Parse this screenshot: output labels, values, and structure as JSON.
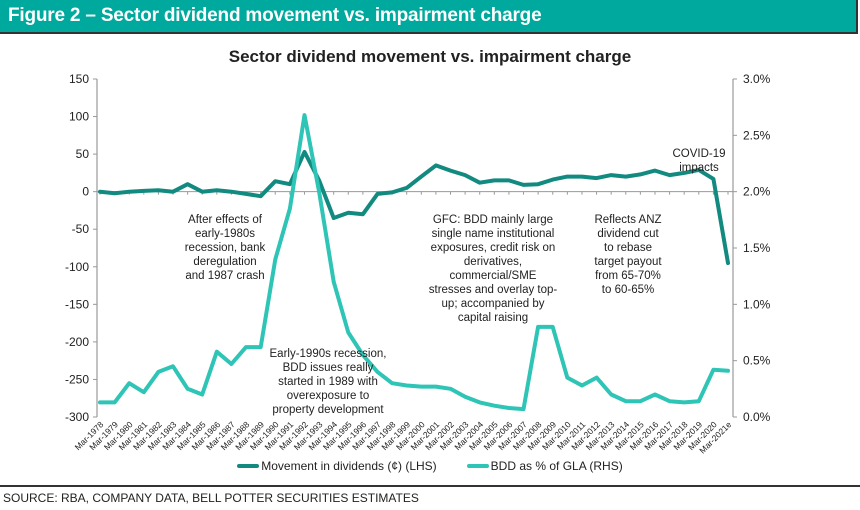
{
  "figure_header": "Figure 2 – Sector dividend movement vs. impairment charge",
  "source": "SOURCE: RBA, COMPANY DATA, BELL POTTER SECURITIES ESTIMATES",
  "colors": {
    "header_bg": "#00a99d",
    "dividends": "#138a80",
    "bdd": "#2ec4b6"
  },
  "chart_data": {
    "type": "line",
    "title": "Sector dividend movement vs. impairment charge",
    "xlabel": "",
    "ylabel_left": "",
    "ylabel_right": "",
    "categories": [
      "Mar-1978",
      "Mar-1979",
      "Mar-1980",
      "Mar-1981",
      "Mar-1982",
      "Mar-1983",
      "Mar-1984",
      "Mar-1985",
      "Mar-1986",
      "Mar-1987",
      "Mar-1988",
      "Mar-1989",
      "Mar-1990",
      "Mar-1991",
      "Mar-1992",
      "Mar-1993",
      "Mar-1994",
      "Mar-1995",
      "Mar-1996",
      "Mar-1997",
      "Mar-1998",
      "Mar-1999",
      "Mar-2000",
      "Mar-2001",
      "Mar-2002",
      "Mar-2003",
      "Mar-2004",
      "Mar-2005",
      "Mar-2006",
      "Mar-2007",
      "Mar-2008",
      "Mar-2009",
      "Mar-2010",
      "Mar-2011",
      "Mar-2012",
      "Mar-2013",
      "Mar-2014",
      "Mar-2015",
      "Mar-2016",
      "Mar-2017",
      "Mar-2018",
      "Mar-2019",
      "Mar-2020",
      "Mar-2021e"
    ],
    "left_axis": {
      "min": -300,
      "max": 150,
      "ticks": [
        150,
        100,
        50,
        0,
        -50,
        -100,
        -150,
        -200,
        -250,
        -300
      ]
    },
    "right_axis": {
      "min": 0,
      "max": 3.0,
      "ticks": [
        "3.0%",
        "2.5%",
        "2.0%",
        "1.5%",
        "1.0%",
        "0.5%",
        "0.0%"
      ]
    },
    "series": [
      {
        "name": "Movement in dividends (¢) (LHS)",
        "axis": "left",
        "values": [
          0,
          -2,
          0,
          1,
          2,
          0,
          10,
          0,
          2,
          0,
          -3,
          -6,
          14,
          10,
          53,
          15,
          -35,
          -28,
          -30,
          -3,
          -1,
          5,
          20,
          35,
          28,
          22,
          12,
          15,
          15,
          9,
          10,
          16,
          20,
          20,
          18,
          22,
          20,
          23,
          28,
          22,
          25,
          29,
          17,
          -95
        ]
      },
      {
        "name": "BDD as % of GLA (RHS)",
        "axis": "right",
        "values": [
          0.13,
          0.13,
          0.3,
          0.22,
          0.4,
          0.45,
          0.25,
          0.2,
          0.58,
          0.47,
          0.62,
          0.62,
          1.4,
          1.85,
          2.68,
          2.0,
          1.2,
          0.75,
          0.55,
          0.4,
          0.3,
          0.28,
          0.27,
          0.27,
          0.25,
          0.18,
          0.13,
          0.1,
          0.08,
          0.07,
          0.8,
          0.8,
          0.35,
          0.28,
          0.35,
          0.2,
          0.14,
          0.14,
          0.2,
          0.14,
          0.13,
          0.14,
          0.42,
          0.41
        ]
      }
    ],
    "legend": [
      "Movement in dividends (¢) (LHS)",
      "BDD as % of GLA (RHS)"
    ],
    "legend_position": "bottom",
    "grid": false,
    "annotations": [
      "After effects of early-1980s recession, bank deregulation and 1987 crash",
      "Early-1990s recession, BDD issues really started in 1989 with overexposure to property development",
      "GFC: BDD mainly large single name institutional exposures, credit risk on derivatives, commercial/SME stresses and overlay top-up; accompanied by capital raising",
      "Reflects ANZ dividend cut to rebase target payout from 65-70% to 60-65%",
      "COVID-19 impacts"
    ]
  },
  "annotation_lines": {
    "a1": [
      "After effects of",
      "early-1980s",
      "recession, bank",
      "deregulation",
      "and 1987 crash"
    ],
    "a2": [
      "Early-1990s recession,",
      "BDD issues really",
      "started in 1989 with",
      "overexposure to",
      "property development"
    ],
    "a3": [
      "GFC: BDD mainly large",
      "single name institutional",
      "exposures, credit risk on",
      "derivatives,",
      "commercial/SME",
      "stresses and overlay top-",
      "up; accompanied by",
      "capital raising"
    ],
    "a4": [
      "Reflects ANZ",
      "dividend cut",
      "to rebase",
      "target payout",
      "from 65-70%",
      "to 60-65%"
    ],
    "a5": [
      "COVID-19",
      "impacts"
    ]
  }
}
